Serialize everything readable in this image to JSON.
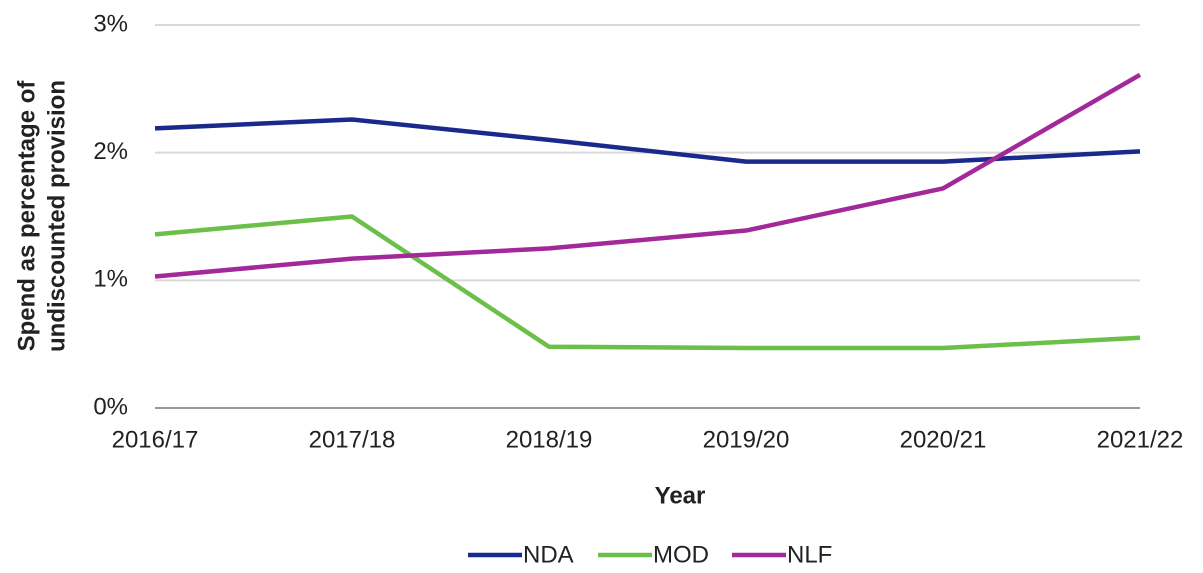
{
  "chart_data": {
    "type": "line",
    "xlabel": "Year",
    "ylabel": [
      "Spend as percentage of",
      "undiscounted provision"
    ],
    "categories": [
      "2016/17",
      "2017/18",
      "2018/19",
      "2019/20",
      "2020/21",
      "2021/22"
    ],
    "series": [
      {
        "name": "NDA",
        "color": "#1a2a8c",
        "values": [
          2.19,
          2.26,
          2.1,
          1.93,
          1.93,
          2.01
        ]
      },
      {
        "name": "MOD",
        "color": "#6cc04a",
        "values": [
          1.36,
          1.5,
          0.48,
          0.47,
          0.47,
          0.55
        ]
      },
      {
        "name": "NLF",
        "color": "#a3289a",
        "values": [
          1.03,
          1.17,
          1.25,
          1.39,
          1.72,
          2.61
        ]
      }
    ],
    "ylim": [
      0,
      3
    ],
    "yticks": [
      {
        "value": 0,
        "label": "0%"
      },
      {
        "value": 1,
        "label": "1%"
      },
      {
        "value": 2,
        "label": "2%"
      },
      {
        "value": 3,
        "label": "3%"
      }
    ],
    "grid": true,
    "legend": "bottom"
  }
}
